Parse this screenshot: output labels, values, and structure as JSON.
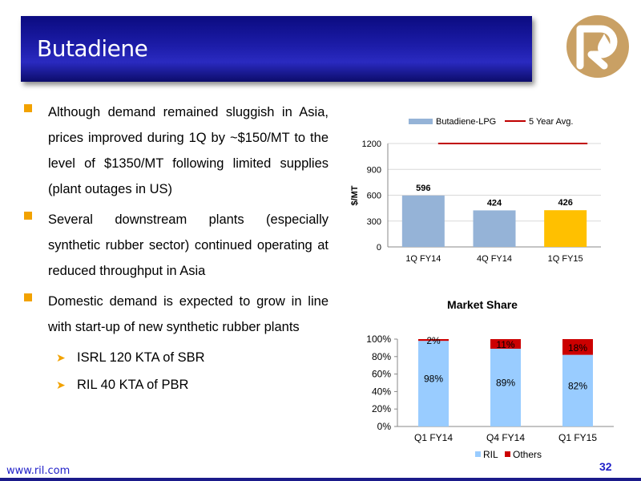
{
  "slide": {
    "title": "Butadiene",
    "footer_url": "www.ril.com",
    "page_number": "32"
  },
  "bullets": [
    {
      "text": "Although demand remained sluggish in Asia, prices improved during 1Q by ~$150/MT to the level of $1350/MT following limited supplies (plant outages in US)"
    },
    {
      "text": "Several downstream plants (especially synthetic rubber sector) continued operating at reduced throughput in Asia"
    },
    {
      "text": "Domestic demand is expected to grow in line with start-up of new synthetic rubber plants"
    }
  ],
  "sub_bullets": [
    {
      "text": "ISRL 120 KTA of SBR"
    },
    {
      "text": "RIL 40 KTA of PBR"
    }
  ],
  "colors": {
    "bullet_marker": "#f2a200",
    "bar_default": "#95b3d7",
    "bar_highlight": "#ffc000",
    "avg_line": "#c00000",
    "ril": "#99ccff",
    "others": "#cc0000",
    "title_text": "#1f1f8f"
  },
  "chart_data": [
    {
      "type": "bar",
      "title": "",
      "xlabel": "",
      "ylabel": "$/MT",
      "categories": [
        "1Q FY14",
        "4Q FY14",
        "1Q FY15"
      ],
      "series": [
        {
          "name": "Butadiene-LPG",
          "values": [
            596,
            424,
            426
          ]
        },
        {
          "name": "5 Year Avg.",
          "type": "line",
          "values": [
            1200,
            1200,
            1200
          ]
        }
      ],
      "highlight_index": 2,
      "ylim": [
        0,
        1200
      ],
      "yticks": [
        0,
        300,
        600,
        900,
        1200
      ],
      "ytick_labels": [
        "0",
        "300",
        "600",
        "900",
        "1200"
      ],
      "data_labels": [
        "596",
        "424",
        "426"
      ],
      "legend": "top",
      "grid": true
    },
    {
      "type": "bar",
      "stacked": true,
      "title": "Market Share",
      "categories": [
        "Q1 FY14",
        "Q4 FY14",
        "Q1 FY15"
      ],
      "series": [
        {
          "name": "RIL",
          "values": [
            98,
            89,
            82
          ],
          "labels": [
            "98%",
            "89%",
            "82%"
          ]
        },
        {
          "name": "Others",
          "values": [
            2,
            11,
            18
          ],
          "labels": [
            "2%",
            "11%",
            "18%"
          ]
        }
      ],
      "ylim": [
        0,
        100
      ],
      "yticks": [
        0,
        20,
        40,
        60,
        80,
        100
      ],
      "ytick_labels": [
        "0%",
        "20%",
        "40%",
        "60%",
        "80%",
        "100%"
      ],
      "legend": "bottom",
      "grid": false
    }
  ]
}
